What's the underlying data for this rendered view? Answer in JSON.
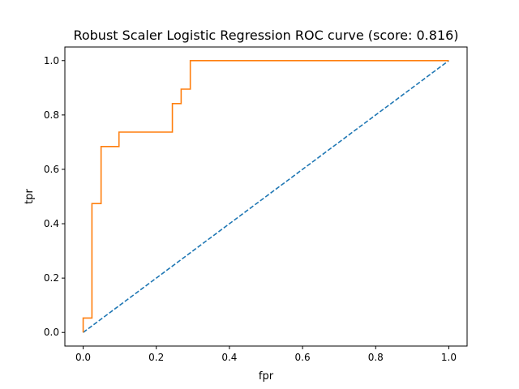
{
  "chart_data": {
    "type": "line",
    "title": "Robust Scaler Logistic Regression ROC curve (score: 0.816)",
    "xlabel": "fpr",
    "ylabel": "tpr",
    "xlim": [
      -0.05,
      1.05
    ],
    "ylim": [
      -0.05,
      1.05
    ],
    "x_ticks": [
      0.0,
      0.2,
      0.4,
      0.6,
      0.8,
      1.0
    ],
    "y_ticks": [
      0.0,
      0.2,
      0.4,
      0.6,
      0.8,
      1.0
    ],
    "x_tick_labels": [
      "0.0",
      "0.2",
      "0.4",
      "0.6",
      "0.8",
      "1.0"
    ],
    "y_tick_labels": [
      "0.0",
      "0.2",
      "0.4",
      "0.6",
      "0.8",
      "1.0"
    ],
    "grid": false,
    "series": [
      {
        "style": "dashed",
        "color": "#1f77b4",
        "x": [
          0.0,
          1.0
        ],
        "y": [
          0.0,
          1.0
        ]
      },
      {
        "style": "solid",
        "color": "#ff7f0e",
        "x": [
          0.0,
          0.0,
          0.024,
          0.024,
          0.049,
          0.049,
          0.098,
          0.098,
          0.244,
          0.244,
          0.268,
          0.268,
          0.293,
          0.293,
          1.0
        ],
        "y": [
          0.0,
          0.053,
          0.053,
          0.474,
          0.474,
          0.684,
          0.684,
          0.737,
          0.737,
          0.842,
          0.842,
          0.895,
          0.895,
          1.0,
          1.0
        ]
      }
    ]
  }
}
